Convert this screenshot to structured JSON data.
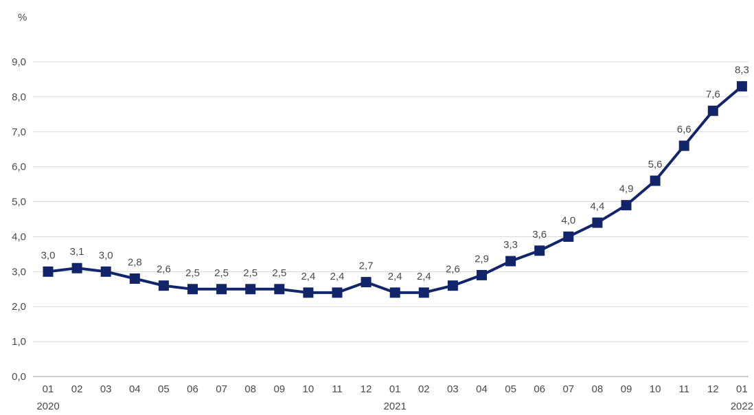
{
  "chart_data": {
    "type": "line",
    "unit_label": "%",
    "categories": [
      "01",
      "02",
      "03",
      "04",
      "05",
      "06",
      "07",
      "08",
      "09",
      "10",
      "11",
      "12",
      "01",
      "02",
      "03",
      "04",
      "05",
      "06",
      "07",
      "08",
      "09",
      "10",
      "11",
      "12",
      "01"
    ],
    "year_labels": [
      {
        "index": 0,
        "label": "2020"
      },
      {
        "index": 12,
        "label": "2021"
      },
      {
        "index": 24,
        "label": "2022"
      }
    ],
    "series": [
      {
        "values": [
          3.0,
          3.1,
          3.0,
          2.8,
          2.6,
          2.5,
          2.5,
          2.5,
          2.5,
          2.4,
          2.4,
          2.7,
          2.4,
          2.4,
          2.6,
          2.9,
          3.3,
          3.6,
          4.0,
          4.4,
          4.9,
          5.6,
          6.6,
          7.6,
          8.3
        ],
        "value_labels": [
          "3,0",
          "3,1",
          "3,0",
          "2,8",
          "2,6",
          "2,5",
          "2,5",
          "2,5",
          "2,5",
          "2,4",
          "2,4",
          "2,7",
          "2,4",
          "2,4",
          "2,6",
          "2,9",
          "3,3",
          "3,6",
          "4,0",
          "4,4",
          "4,9",
          "5,6",
          "6,6",
          "7,6",
          "8,3"
        ],
        "color": "#12256b"
      }
    ],
    "ylim": [
      0,
      9
    ],
    "y_ticks": [
      0,
      1,
      2,
      3,
      4,
      5,
      6,
      7,
      8,
      9
    ],
    "y_tick_labels": [
      "0,0",
      "1,0",
      "2,0",
      "3,0",
      "4,0",
      "5,0",
      "6,0",
      "7,0",
      "8,0",
      "9,0"
    ],
    "grid": true,
    "legend": "none"
  }
}
